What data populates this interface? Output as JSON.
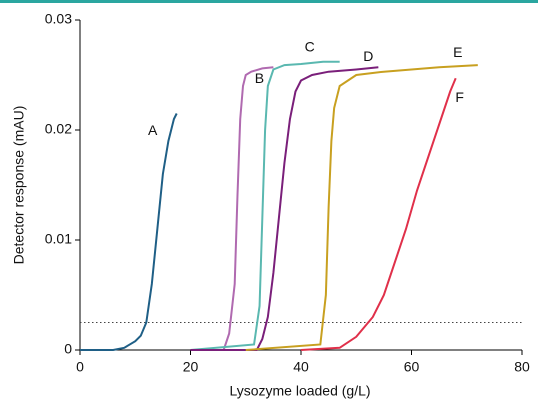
{
  "chart_data": {
    "type": "line",
    "xlabel": "Lysozyme loaded (g/L)",
    "ylabel": "Detector response (mAU)",
    "xlim": [
      0,
      80
    ],
    "xticks": [
      0,
      20,
      40,
      60,
      80
    ],
    "ylim": [
      0,
      0.03
    ],
    "yticks": [
      0,
      0.01,
      0.02,
      0.03
    ],
    "reference_line": 0.0025,
    "series": [
      {
        "name": "A",
        "color": "#1f5f86",
        "x": [
          0,
          6,
          8,
          10,
          11,
          12,
          13,
          14,
          15,
          16,
          17,
          17.5
        ],
        "values": [
          0,
          0,
          0.0002,
          0.0008,
          0.0013,
          0.0025,
          0.006,
          0.011,
          0.016,
          0.019,
          0.021,
          0.0215
        ]
      },
      {
        "name": "B",
        "color": "#b06ab0",
        "x": [
          20,
          26,
          27,
          28,
          28.5,
          29,
          29.5,
          30,
          31,
          33,
          35
        ],
        "values": [
          0,
          0,
          0.0015,
          0.006,
          0.014,
          0.021,
          0.024,
          0.025,
          0.0253,
          0.0256,
          0.0257
        ]
      },
      {
        "name": "C",
        "color": "#5ab8b0",
        "x": [
          20,
          31.5,
          32.5,
          33,
          33.5,
          34,
          35,
          37,
          40,
          44,
          47
        ],
        "values": [
          0,
          0.0005,
          0.004,
          0.012,
          0.02,
          0.024,
          0.0255,
          0.0259,
          0.026,
          0.0262,
          0.0262
        ]
      },
      {
        "name": "D",
        "color": "#7a1f7a",
        "x": [
          20,
          32,
          33,
          34,
          35,
          36,
          37,
          38,
          39,
          40,
          42,
          45,
          50,
          54
        ],
        "values": [
          0,
          0,
          0.001,
          0.003,
          0.007,
          0.012,
          0.017,
          0.021,
          0.0235,
          0.0245,
          0.025,
          0.0253,
          0.0255,
          0.0257
        ]
      },
      {
        "name": "E",
        "color": "#c8a020",
        "x": [
          30,
          43.5,
          44.5,
          45,
          45.5,
          46,
          47,
          50,
          55,
          60,
          65,
          72
        ],
        "values": [
          0,
          0.0005,
          0.005,
          0.013,
          0.019,
          0.022,
          0.024,
          0.025,
          0.0253,
          0.0255,
          0.0257,
          0.0259
        ]
      },
      {
        "name": "F",
        "color": "#e0304a",
        "x": [
          40,
          47,
          50,
          53,
          55,
          57,
          59,
          61,
          63,
          65,
          67,
          68
        ],
        "values": [
          0,
          0.0002,
          0.0012,
          0.003,
          0.005,
          0.008,
          0.011,
          0.0145,
          0.0175,
          0.0205,
          0.0235,
          0.0247
        ]
      }
    ]
  }
}
